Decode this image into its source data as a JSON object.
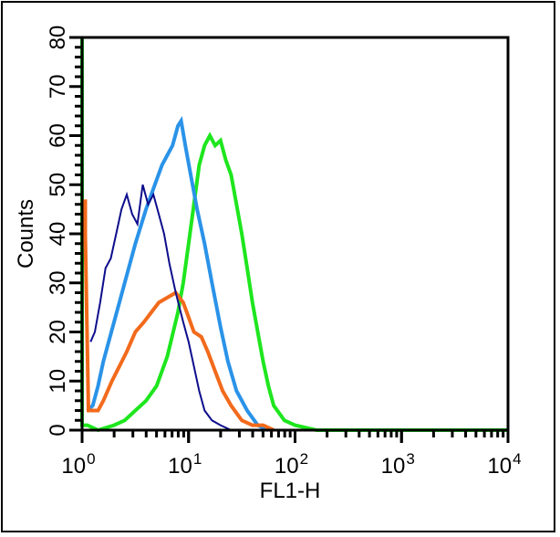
{
  "chart_data": {
    "type": "line",
    "title": "",
    "xlabel": "FL1-H",
    "ylabel": "Counts",
    "xscale": "log",
    "xlim": [
      1,
      10000
    ],
    "ylim": [
      0,
      80
    ],
    "grid": false,
    "legend": null,
    "x_ticks": [
      {
        "base": "10",
        "exp": "0",
        "value": 1
      },
      {
        "base": "10",
        "exp": "1",
        "value": 10
      },
      {
        "base": "10",
        "exp": "2",
        "value": 100
      },
      {
        "base": "10",
        "exp": "3",
        "value": 1000
      },
      {
        "base": "10",
        "exp": "4",
        "value": 10000
      }
    ],
    "y_ticks": [
      "0",
      "10",
      "20",
      "30",
      "40",
      "50",
      "60",
      "70",
      "80"
    ],
    "series": [
      {
        "name": "green",
        "color": "#1ee61e",
        "width": 4,
        "points_log10x": [
          [
            0.0,
            80
          ],
          [
            0.0,
            1
          ],
          [
            0.05,
            1
          ],
          [
            0.15,
            0
          ],
          [
            0.3,
            1
          ],
          [
            0.4,
            2
          ],
          [
            0.5,
            4
          ],
          [
            0.6,
            6
          ],
          [
            0.7,
            9
          ],
          [
            0.8,
            15
          ],
          [
            0.9,
            24
          ],
          [
            0.95,
            30
          ],
          [
            1.0,
            38
          ],
          [
            1.05,
            46
          ],
          [
            1.1,
            54
          ],
          [
            1.15,
            58
          ],
          [
            1.2,
            60
          ],
          [
            1.25,
            58
          ],
          [
            1.3,
            59
          ],
          [
            1.35,
            55
          ],
          [
            1.4,
            52
          ],
          [
            1.45,
            46
          ],
          [
            1.5,
            40
          ],
          [
            1.55,
            33
          ],
          [
            1.6,
            26
          ],
          [
            1.65,
            20
          ],
          [
            1.7,
            14
          ],
          [
            1.75,
            9
          ],
          [
            1.8,
            5
          ],
          [
            1.9,
            2
          ],
          [
            2.0,
            1
          ],
          [
            2.2,
            0
          ],
          [
            4.0,
            0
          ]
        ]
      },
      {
        "name": "light-blue",
        "color": "#2a93e8",
        "width": 4,
        "points_log10x": [
          [
            0.05,
            4
          ],
          [
            0.1,
            5
          ],
          [
            0.15,
            9
          ],
          [
            0.2,
            14
          ],
          [
            0.3,
            22
          ],
          [
            0.4,
            30
          ],
          [
            0.5,
            38
          ],
          [
            0.6,
            45
          ],
          [
            0.7,
            51
          ],
          [
            0.75,
            54
          ],
          [
            0.8,
            56
          ],
          [
            0.85,
            58
          ],
          [
            0.9,
            62
          ],
          [
            0.93,
            63
          ],
          [
            0.97,
            58
          ],
          [
            1.02,
            52
          ],
          [
            1.08,
            45
          ],
          [
            1.15,
            38
          ],
          [
            1.22,
            30
          ],
          [
            1.3,
            21
          ],
          [
            1.37,
            14
          ],
          [
            1.45,
            8
          ],
          [
            1.55,
            4
          ],
          [
            1.65,
            1
          ],
          [
            1.75,
            0
          ]
        ]
      },
      {
        "name": "orange",
        "color": "#f26a1b",
        "width": 4,
        "points_log10x": [
          [
            0.03,
            47
          ],
          [
            0.03,
            40
          ],
          [
            0.06,
            4
          ],
          [
            0.15,
            4
          ],
          [
            0.2,
            6
          ],
          [
            0.28,
            10
          ],
          [
            0.35,
            13
          ],
          [
            0.42,
            16
          ],
          [
            0.5,
            20
          ],
          [
            0.58,
            22
          ],
          [
            0.65,
            24
          ],
          [
            0.72,
            26
          ],
          [
            0.8,
            27
          ],
          [
            0.88,
            28
          ],
          [
            0.95,
            26
          ],
          [
            1.0,
            23
          ],
          [
            1.05,
            20
          ],
          [
            1.12,
            19
          ],
          [
            1.18,
            16
          ],
          [
            1.25,
            12
          ],
          [
            1.32,
            8
          ],
          [
            1.4,
            5
          ],
          [
            1.5,
            2
          ],
          [
            1.6,
            1
          ],
          [
            1.7,
            1
          ],
          [
            1.8,
            0
          ]
        ]
      },
      {
        "name": "navy",
        "color": "#0d0d8c",
        "width": 2,
        "points_log10x": [
          [
            0.08,
            18
          ],
          [
            0.12,
            20
          ],
          [
            0.17,
            26
          ],
          [
            0.22,
            33
          ],
          [
            0.27,
            35
          ],
          [
            0.32,
            40
          ],
          [
            0.37,
            45
          ],
          [
            0.42,
            48
          ],
          [
            0.47,
            44
          ],
          [
            0.52,
            42
          ],
          [
            0.57,
            50
          ],
          [
            0.62,
            46
          ],
          [
            0.67,
            48
          ],
          [
            0.72,
            44
          ],
          [
            0.77,
            40
          ],
          [
            0.82,
            34
          ],
          [
            0.88,
            28
          ],
          [
            0.95,
            22
          ],
          [
            1.0,
            18
          ],
          [
            1.05,
            13
          ],
          [
            1.1,
            8
          ],
          [
            1.15,
            4
          ],
          [
            1.22,
            2
          ],
          [
            1.3,
            1
          ],
          [
            1.4,
            0
          ]
        ]
      }
    ]
  }
}
